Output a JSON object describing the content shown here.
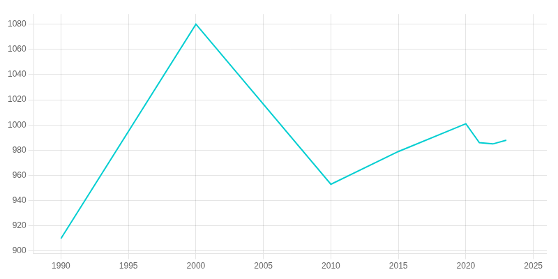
{
  "chart_data": {
    "type": "line",
    "x": [
      1990,
      2000,
      2010,
      2015,
      2020,
      2021,
      2022,
      2023
    ],
    "values": [
      910,
      1080,
      953,
      979,
      1001,
      986,
      985,
      988
    ],
    "color": "#00CED1",
    "xlim": [
      1988,
      2026
    ],
    "ylim": [
      898,
      1088
    ],
    "xticks": [
      1990,
      1995,
      2000,
      2005,
      2010,
      2015,
      2020,
      2025
    ],
    "yticks": [
      900,
      920,
      940,
      960,
      980,
      1000,
      1020,
      1040,
      1060,
      1080
    ],
    "grid": true
  }
}
